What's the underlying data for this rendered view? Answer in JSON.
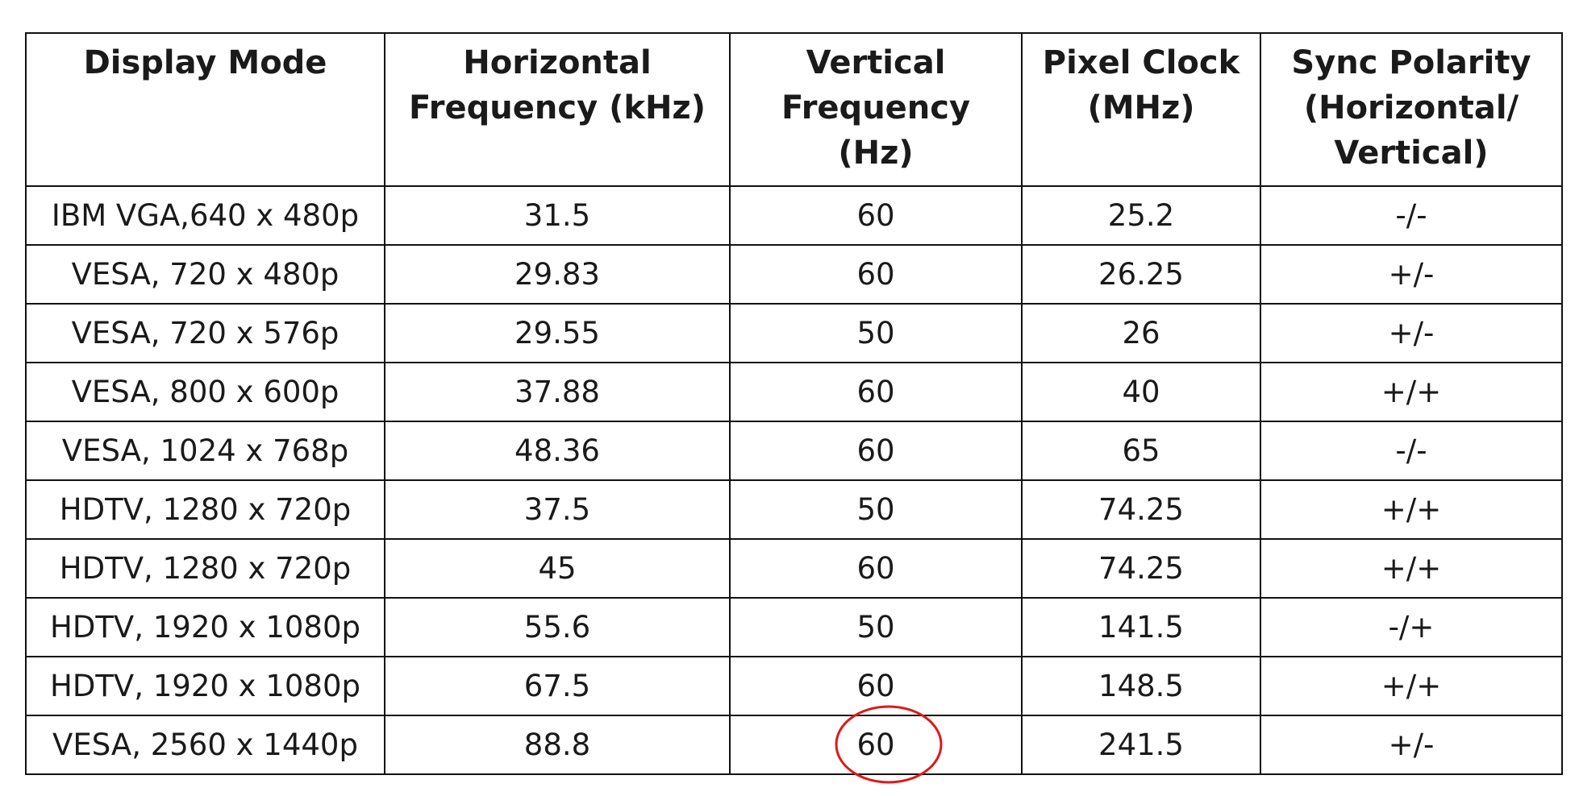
{
  "table": {
    "header": [
      "Display Mode",
      "Horizontal\nFrequency (kHz)",
      "Vertical\nFrequency\n(Hz)",
      "Pixel Clock\n(MHz)",
      "Sync Polarity\n(Horizontal/\nVertical)"
    ],
    "rows": [
      [
        "IBM VGA,640 x 480p",
        "31.5",
        "60",
        "25.2",
        "-/-"
      ],
      [
        "VESA, 720 x 480p",
        "29.83",
        "60",
        "26.25",
        "+/-"
      ],
      [
        "VESA, 720 x 576p",
        "29.55",
        "50",
        "26",
        "+/-"
      ],
      [
        "VESA, 800 x 600p",
        "37.88",
        "60",
        "40",
        "+/+"
      ],
      [
        "VESA, 1024 x 768p",
        "48.36",
        "60",
        "65",
        "-/-"
      ],
      [
        "HDTV, 1280 x 720p",
        "37.5",
        "50",
        "74.25",
        "+/+"
      ],
      [
        "HDTV, 1280 x 720p",
        "45",
        "60",
        "74.25",
        "+/+"
      ],
      [
        "HDTV, 1920 x 1080p",
        "55.6",
        "50",
        "141.5",
        "-/+"
      ],
      [
        "HDTV, 1920 x 1080p",
        "67.5",
        "60",
        "148.5",
        "+/+"
      ],
      [
        "VESA, 2560 x 1440p",
        "88.8",
        "60",
        "241.5",
        "+/-"
      ]
    ]
  }
}
